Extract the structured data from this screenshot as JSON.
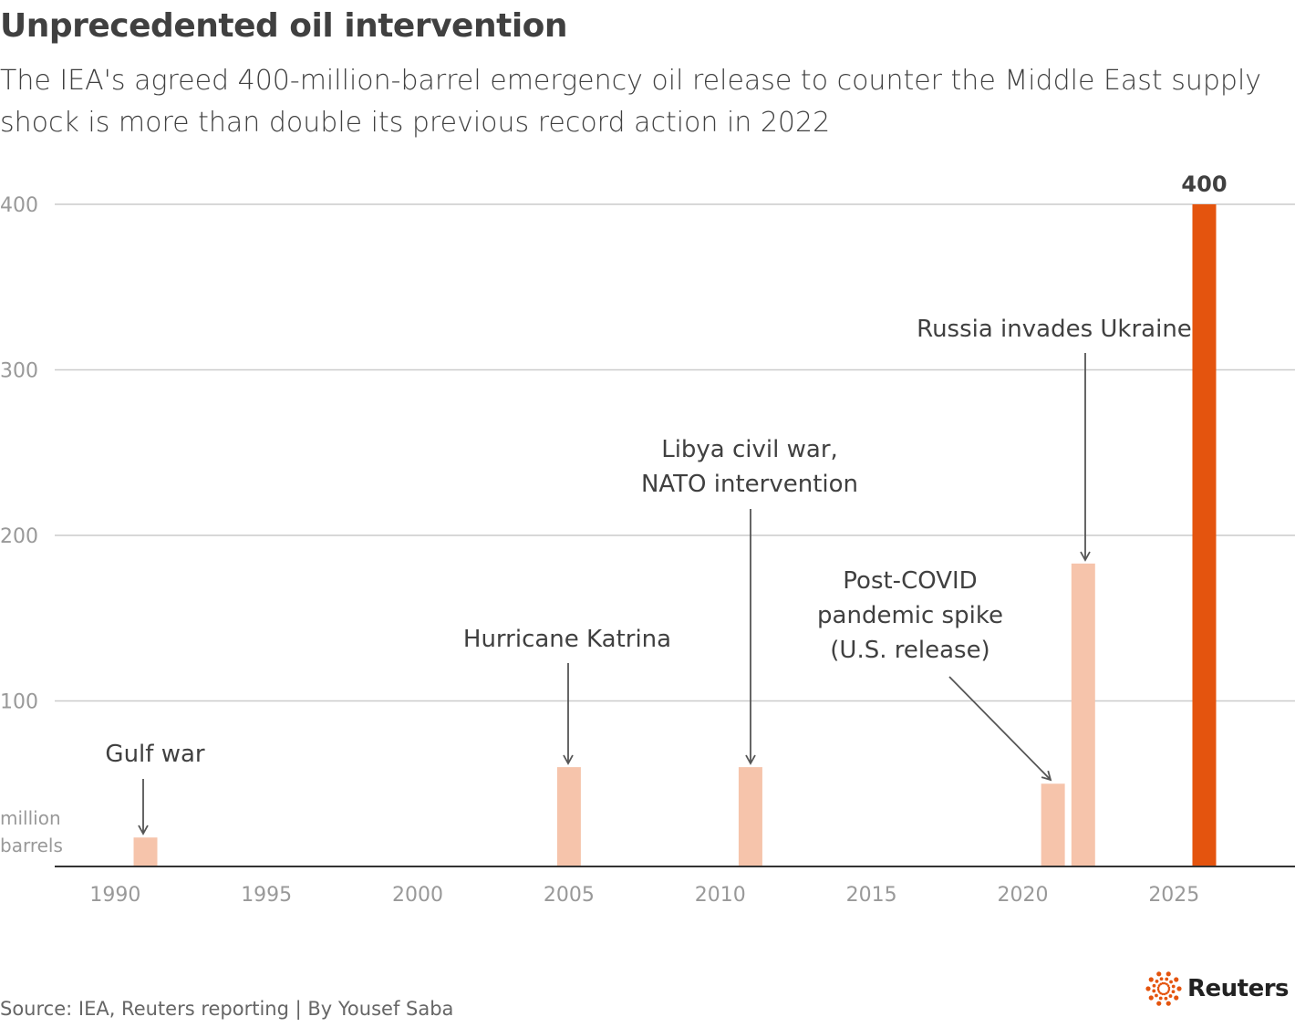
{
  "chart_data": {
    "type": "bar",
    "title": "Unprecedented oil intervention",
    "subtitle": "The IEA's agreed 400-million-barrel emergency oil release to counter the Middle East supply shock is more than double its previous record action in 2022",
    "ylabel": "million barrels",
    "xlabel": "",
    "x": [
      1991,
      2005,
      2011,
      2021,
      2022,
      2026
    ],
    "values": [
      17.5,
      60,
      60,
      50,
      183,
      400
    ],
    "bar_colors": [
      "#f6c4ab",
      "#f6c4ab",
      "#f6c4ab",
      "#f6c4ab",
      "#f6c4ab",
      "#e4540e"
    ],
    "highlight_label": "400",
    "xlim": [
      1988,
      2029
    ],
    "ylim": [
      0,
      400
    ],
    "x_ticks": [
      "1990",
      "1995",
      "2000",
      "2005",
      "2010",
      "2015",
      "2020",
      "2025"
    ],
    "y_ticks": [
      "100",
      "200",
      "300",
      "400"
    ],
    "grid": true,
    "annotations": [
      {
        "year": 1991,
        "lines": [
          "Gulf war"
        ]
      },
      {
        "year": 2005,
        "lines": [
          "Hurricane Katrina"
        ]
      },
      {
        "year": 2011,
        "lines": [
          "Libya civil war,",
          "NATO intervention"
        ]
      },
      {
        "year": 2021,
        "lines": [
          "Post-COVID",
          "pandemic spike",
          "(U.S. release)"
        ]
      },
      {
        "year": 2022,
        "lines": [
          "Russia invades Ukraine"
        ]
      }
    ]
  },
  "source": "Source: IEA, Reuters reporting | By Yousef Saba",
  "logo": {
    "text": "Reuters",
    "color": "#e4540e"
  }
}
